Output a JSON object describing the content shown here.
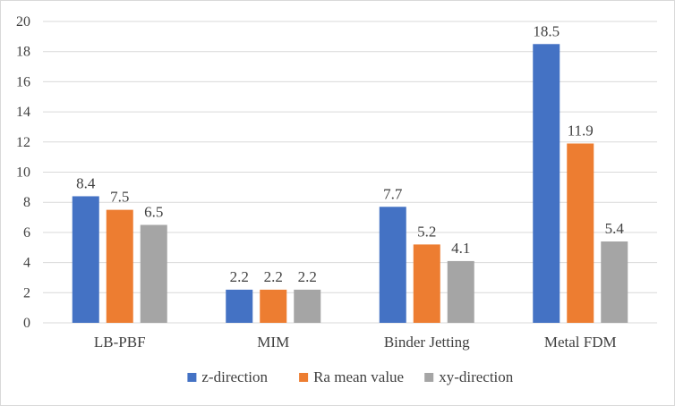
{
  "chart_data": {
    "type": "bar",
    "categories": [
      "LB-PBF",
      "MIM",
      "Binder Jetting",
      "Metal FDM"
    ],
    "series": [
      {
        "name": "z-direction",
        "values": [
          8.4,
          2.2,
          7.7,
          18.5
        ],
        "color": "#4472c4"
      },
      {
        "name": "Ra mean value",
        "values": [
          7.5,
          2.2,
          5.2,
          11.9
        ],
        "color": "#ed7d31"
      },
      {
        "name": "xy-direction",
        "values": [
          6.5,
          2.2,
          4.1,
          5.4
        ],
        "color": "#a5a5a5"
      }
    ],
    "ylim": [
      0,
      20
    ],
    "yticks": [
      0,
      2,
      4,
      6,
      8,
      10,
      12,
      14,
      16,
      18,
      20
    ],
    "grid": true,
    "legend": "bottom",
    "data_labels": true
  }
}
